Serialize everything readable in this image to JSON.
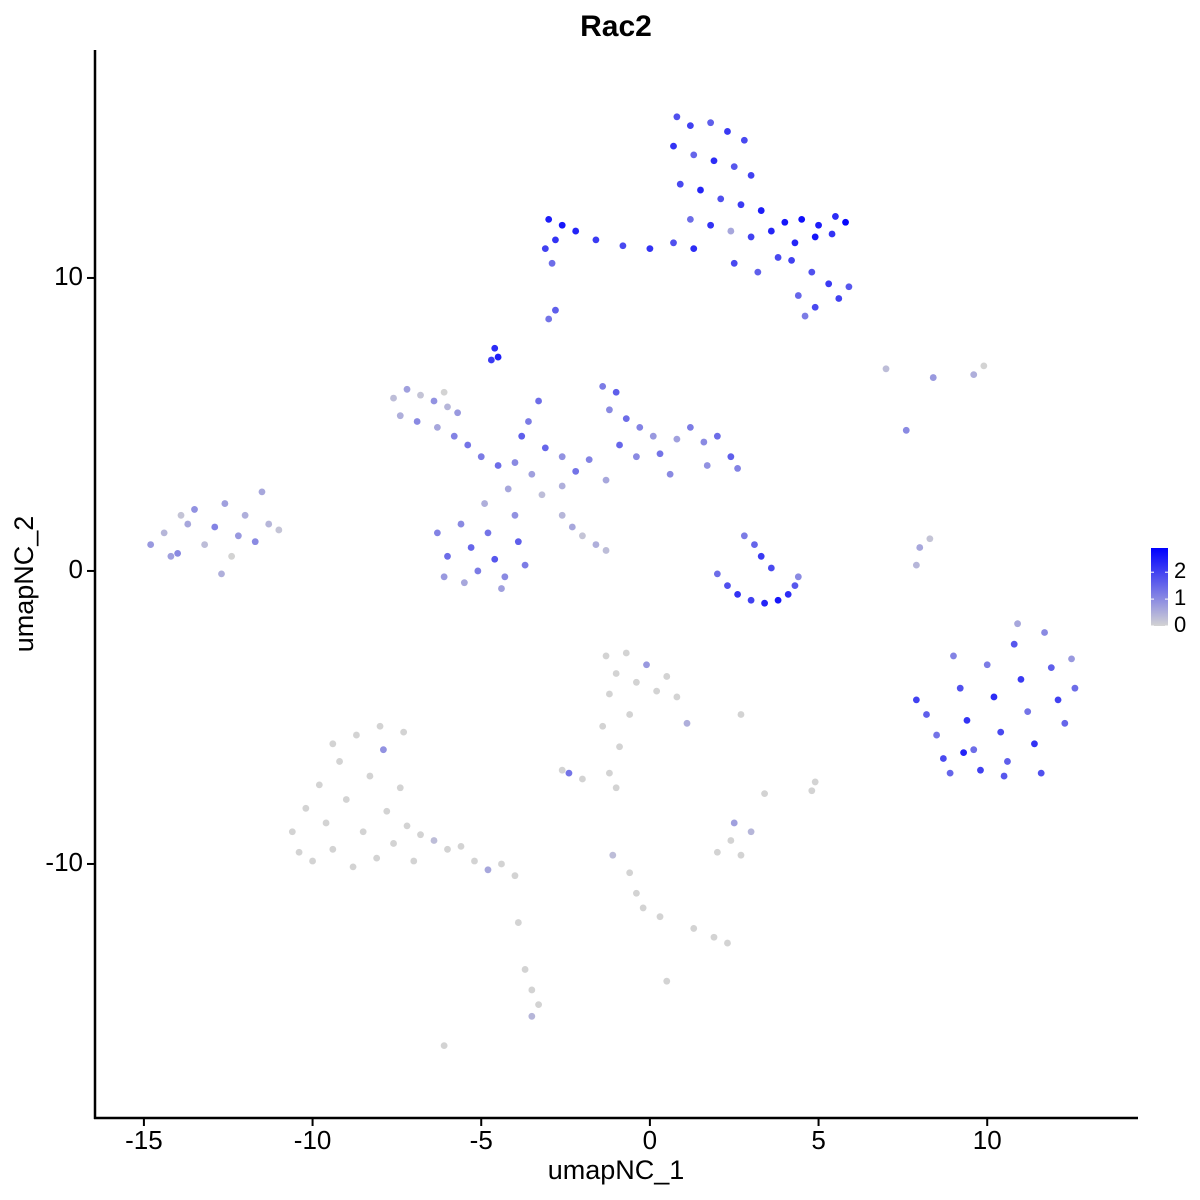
{
  "chart_data": {
    "type": "scatter",
    "title": "Rac2",
    "x_label": "umapNC_1",
    "y_label": "umapNC_2",
    "xlim": [
      -16.45,
      14.47
    ],
    "ylim": [
      -18.67,
      17.78
    ],
    "xticks": [
      -15,
      -10,
      -5,
      0,
      5,
      10
    ],
    "yticks": [
      -10,
      0,
      10
    ],
    "color_low": "#d3d3d3",
    "color_high": "#0000ff",
    "color_lim": [
      0,
      2.9
    ],
    "color_ticks": [
      0,
      1,
      2
    ],
    "points": [
      [
        0.8,
        15.5,
        1.8
      ],
      [
        1.2,
        15.2,
        2.0
      ],
      [
        1.8,
        15.3,
        1.6
      ],
      [
        2.3,
        15.0,
        2.1
      ],
      [
        2.8,
        14.7,
        1.9
      ],
      [
        0.7,
        14.5,
        2.2
      ],
      [
        1.3,
        14.2,
        1.5
      ],
      [
        1.9,
        14.0,
        2.3
      ],
      [
        2.5,
        13.8,
        1.7
      ],
      [
        3.0,
        13.5,
        2.0
      ],
      [
        0.9,
        13.2,
        1.9
      ],
      [
        1.5,
        13.0,
        2.4
      ],
      [
        2.1,
        12.7,
        1.8
      ],
      [
        2.7,
        12.5,
        2.1
      ],
      [
        3.3,
        12.3,
        2.5
      ],
      [
        1.2,
        12.0,
        1.4
      ],
      [
        1.8,
        11.8,
        2.2
      ],
      [
        2.4,
        11.6,
        0.6
      ],
      [
        3.0,
        11.4,
        2.0
      ],
      [
        3.6,
        11.6,
        2.4
      ],
      [
        4.0,
        11.9,
        2.6
      ],
      [
        4.5,
        12.0,
        2.7
      ],
      [
        5.0,
        11.8,
        2.5
      ],
      [
        5.5,
        12.1,
        2.3
      ],
      [
        5.8,
        11.9,
        2.8
      ],
      [
        4.3,
        11.2,
        2.4
      ],
      [
        4.9,
        11.4,
        2.6
      ],
      [
        5.4,
        11.5,
        2.2
      ],
      [
        4.2,
        10.6,
        2.0
      ],
      [
        4.8,
        10.2,
        1.8
      ],
      [
        5.3,
        9.8,
        2.1
      ],
      [
        5.9,
        9.7,
        1.7
      ],
      [
        4.4,
        9.4,
        1.5
      ],
      [
        4.9,
        9.0,
        1.9
      ],
      [
        4.6,
        8.7,
        1.2
      ],
      [
        5.6,
        9.3,
        2.0
      ],
      [
        3.2,
        10.2,
        1.6
      ],
      [
        2.5,
        10.5,
        1.9
      ],
      [
        -3.0,
        12.0,
        2.5
      ],
      [
        -2.6,
        11.8,
        2.6
      ],
      [
        -2.2,
        11.6,
        2.4
      ],
      [
        -2.8,
        11.3,
        2.2
      ],
      [
        -3.1,
        11.0,
        2.0
      ],
      [
        -1.6,
        11.3,
        2.1
      ],
      [
        -0.8,
        11.1,
        1.9
      ],
      [
        0.0,
        11.0,
        2.2
      ],
      [
        0.7,
        11.2,
        1.8
      ],
      [
        1.3,
        11.0,
        2.3
      ],
      [
        -3.0,
        8.6,
        1.3
      ],
      [
        -2.8,
        8.9,
        1.6
      ],
      [
        -2.9,
        10.5,
        1.4
      ],
      [
        3.8,
        10.7,
        1.9
      ],
      [
        -4.6,
        7.6,
        2.3
      ],
      [
        -4.5,
        7.3,
        2.5
      ],
      [
        -4.7,
        7.2,
        2.1
      ],
      [
        -7.6,
        5.9,
        0.3
      ],
      [
        -7.2,
        6.2,
        0.7
      ],
      [
        -6.8,
        6.0,
        0.2
      ],
      [
        -6.4,
        5.8,
        0.9
      ],
      [
        -6.0,
        5.6,
        0.4
      ],
      [
        -7.4,
        5.3,
        0.5
      ],
      [
        -6.9,
        5.1,
        1.0
      ],
      [
        -6.3,
        4.9,
        0.6
      ],
      [
        -5.8,
        4.6,
        1.1
      ],
      [
        -5.4,
        4.3,
        1.3
      ],
      [
        -6.1,
        6.1,
        0.0
      ],
      [
        -5.7,
        5.4,
        0.8
      ],
      [
        -5.0,
        3.9,
        1.2
      ],
      [
        -4.5,
        3.6,
        1.4
      ],
      [
        -4.0,
        3.7,
        1.0
      ],
      [
        -3.5,
        3.3,
        0.7
      ],
      [
        -3.1,
        4.2,
        1.5
      ],
      [
        -2.6,
        3.9,
        0.9
      ],
      [
        -2.2,
        3.4,
        1.3
      ],
      [
        -1.8,
        3.8,
        1.1
      ],
      [
        -3.8,
        4.6,
        1.6
      ],
      [
        -3.3,
        5.8,
        1.4
      ],
      [
        -3.6,
        5.1,
        1.2
      ],
      [
        -4.2,
        2.8,
        0.6
      ],
      [
        -3.2,
        2.6,
        0.3
      ],
      [
        -2.6,
        2.9,
        0.5
      ],
      [
        -1.4,
        6.3,
        1.2
      ],
      [
        -1.0,
        6.1,
        1.6
      ],
      [
        -1.2,
        5.5,
        1.0
      ],
      [
        -0.7,
        5.2,
        1.4
      ],
      [
        -0.3,
        4.9,
        1.1
      ],
      [
        0.1,
        4.6,
        0.8
      ],
      [
        -0.9,
        4.3,
        1.5
      ],
      [
        -0.4,
        3.9,
        1.0
      ],
      [
        0.3,
        4.0,
        1.3
      ],
      [
        0.8,
        4.5,
        0.7
      ],
      [
        1.2,
        4.9,
        1.2
      ],
      [
        1.6,
        4.4,
        1.0
      ],
      [
        2.0,
        4.6,
        1.4
      ],
      [
        2.4,
        3.9,
        1.6
      ],
      [
        2.6,
        3.5,
        1.1
      ],
      [
        1.7,
        3.6,
        0.9
      ],
      [
        -1.3,
        3.1,
        0.6
      ],
      [
        0.6,
        3.3,
        1.0
      ],
      [
        -6.3,
        1.3,
        1.1
      ],
      [
        -6.0,
        0.5,
        1.4
      ],
      [
        -6.1,
        -0.2,
        0.8
      ],
      [
        -5.6,
        1.6,
        1.0
      ],
      [
        -5.3,
        0.8,
        1.5
      ],
      [
        -5.1,
        0.0,
        1.2
      ],
      [
        -5.5,
        -0.4,
        0.6
      ],
      [
        -4.8,
        1.3,
        1.3
      ],
      [
        -4.6,
        0.4,
        1.7
      ],
      [
        -4.3,
        -0.2,
        1.0
      ],
      [
        -4.0,
        1.9,
        0.9
      ],
      [
        -3.9,
        1.0,
        1.6
      ],
      [
        -3.7,
        0.2,
        1.2
      ],
      [
        -4.4,
        -0.6,
        0.7
      ],
      [
        -4.9,
        2.3,
        0.5
      ],
      [
        -2.6,
        1.9,
        0.4
      ],
      [
        -2.3,
        1.5,
        0.6
      ],
      [
        -2.0,
        1.2,
        0.2
      ],
      [
        -1.6,
        0.9,
        0.5
      ],
      [
        -1.3,
        0.7,
        0.3
      ],
      [
        -14.8,
        0.9,
        0.8
      ],
      [
        -14.4,
        1.3,
        0.4
      ],
      [
        -14.0,
        0.6,
        1.0
      ],
      [
        -13.7,
        1.6,
        0.6
      ],
      [
        -13.5,
        2.1,
        0.9
      ],
      [
        -13.2,
        0.9,
        0.3
      ],
      [
        -12.9,
        1.5,
        1.1
      ],
      [
        -12.6,
        2.3,
        0.7
      ],
      [
        -12.4,
        0.5,
        0.0
      ],
      [
        -12.2,
        1.2,
        0.8
      ],
      [
        -12.0,
        1.9,
        0.5
      ],
      [
        -11.7,
        1.0,
        1.0
      ],
      [
        -11.5,
        2.7,
        0.6
      ],
      [
        -11.3,
        1.6,
        0.4
      ],
      [
        -11.0,
        1.4,
        0.2
      ],
      [
        -12.7,
        -0.1,
        0.5
      ],
      [
        -13.9,
        1.9,
        0.2
      ],
      [
        -14.2,
        0.5,
        0.7
      ],
      [
        2.0,
        -0.1,
        1.4
      ],
      [
        2.3,
        -0.5,
        1.8
      ],
      [
        2.6,
        -0.8,
        2.2
      ],
      [
        3.0,
        -1.0,
        2.0
      ],
      [
        3.4,
        -1.1,
        2.4
      ],
      [
        3.8,
        -1.0,
        2.6
      ],
      [
        4.1,
        -0.8,
        2.3
      ],
      [
        4.3,
        -0.5,
        1.7
      ],
      [
        3.1,
        0.9,
        1.5
      ],
      [
        3.3,
        0.5,
        2.1
      ],
      [
        2.8,
        1.2,
        1.2
      ],
      [
        3.6,
        0.1,
        1.9
      ],
      [
        4.4,
        -0.2,
        1.0
      ],
      [
        7.9,
        -4.4,
        2.0
      ],
      [
        8.2,
        -4.9,
        1.6
      ],
      [
        8.5,
        -5.6,
        1.3
      ],
      [
        8.7,
        -6.4,
        1.9
      ],
      [
        8.9,
        -6.9,
        1.5
      ],
      [
        9.2,
        -4.0,
        1.8
      ],
      [
        9.4,
        -5.1,
        2.2
      ],
      [
        9.6,
        -6.1,
        1.4
      ],
      [
        9.8,
        -6.8,
        2.0
      ],
      [
        10.0,
        -3.2,
        1.2
      ],
      [
        10.2,
        -4.3,
        2.3
      ],
      [
        10.4,
        -5.5,
        1.9
      ],
      [
        10.6,
        -6.5,
        1.6
      ],
      [
        10.8,
        -2.5,
        1.7
      ],
      [
        11.0,
        -3.7,
        2.1
      ],
      [
        11.2,
        -4.8,
        1.3
      ],
      [
        11.4,
        -5.9,
        2.2
      ],
      [
        11.6,
        -6.9,
        1.8
      ],
      [
        11.7,
        -2.1,
        1.0
      ],
      [
        11.9,
        -3.3,
        1.6
      ],
      [
        12.1,
        -4.4,
        2.0
      ],
      [
        12.3,
        -5.2,
        1.5
      ],
      [
        12.5,
        -3.0,
        0.8
      ],
      [
        12.6,
        -4.0,
        1.4
      ],
      [
        10.9,
        -1.8,
        0.6
      ],
      [
        9.0,
        -2.9,
        1.1
      ],
      [
        9.3,
        -6.2,
        2.4
      ],
      [
        10.5,
        -7.0,
        1.7
      ],
      [
        7.0,
        6.9,
        0.3
      ],
      [
        8.4,
        6.6,
        0.8
      ],
      [
        9.6,
        6.7,
        0.5
      ],
      [
        9.9,
        7.0,
        0.0
      ],
      [
        7.6,
        4.8,
        1.0
      ],
      [
        8.0,
        0.8,
        0.6
      ],
      [
        7.9,
        0.2,
        0.4
      ],
      [
        8.3,
        1.1,
        0.2
      ],
      [
        -10.6,
        -8.9,
        0
      ],
      [
        -10.4,
        -9.6,
        0
      ],
      [
        -10.2,
        -8.1,
        0
      ],
      [
        -10.0,
        -9.9,
        0
      ],
      [
        -9.8,
        -7.3,
        0
      ],
      [
        -9.6,
        -8.6,
        0
      ],
      [
        -9.4,
        -9.5,
        0
      ],
      [
        -9.2,
        -6.5,
        0
      ],
      [
        -9.0,
        -7.8,
        0
      ],
      [
        -8.8,
        -10.1,
        0
      ],
      [
        -8.7,
        -5.6,
        0
      ],
      [
        -8.5,
        -8.9,
        0
      ],
      [
        -8.3,
        -7.0,
        0
      ],
      [
        -8.1,
        -9.8,
        0
      ],
      [
        -7.9,
        -6.1,
        0.9
      ],
      [
        -7.8,
        -8.2,
        0
      ],
      [
        -7.6,
        -9.3,
        0
      ],
      [
        -7.4,
        -7.4,
        0
      ],
      [
        -7.3,
        -5.5,
        0
      ],
      [
        -7.2,
        -8.7,
        0
      ],
      [
        -8.0,
        -5.3,
        0
      ],
      [
        -9.4,
        -5.9,
        0
      ],
      [
        -7.0,
        -9.9,
        0
      ],
      [
        -6.8,
        -9.0,
        0
      ],
      [
        -6.4,
        -9.2,
        0.3
      ],
      [
        -6.0,
        -9.5,
        0
      ],
      [
        -5.6,
        -9.4,
        0
      ],
      [
        -5.2,
        -9.9,
        0
      ],
      [
        -4.8,
        -10.2,
        0.6
      ],
      [
        -4.4,
        -10.0,
        0
      ],
      [
        -4.0,
        -10.4,
        0
      ],
      [
        -1.3,
        -2.9,
        0
      ],
      [
        -1.0,
        -3.5,
        0
      ],
      [
        -0.7,
        -2.8,
        0
      ],
      [
        -0.4,
        -3.8,
        0
      ],
      [
        -0.1,
        -3.2,
        0.8
      ],
      [
        0.2,
        -4.1,
        0
      ],
      [
        0.5,
        -3.6,
        0
      ],
      [
        0.8,
        -4.3,
        0
      ],
      [
        1.1,
        -5.2,
        0.5
      ],
      [
        -1.2,
        -4.2,
        0
      ],
      [
        -0.6,
        -4.9,
        0
      ],
      [
        -1.4,
        -5.3,
        0
      ],
      [
        -0.9,
        -6.0,
        0
      ],
      [
        -2.6,
        -6.8,
        0
      ],
      [
        -2.4,
        -6.9,
        1.3
      ],
      [
        -2.0,
        -7.1,
        0
      ],
      [
        -1.2,
        -6.9,
        0
      ],
      [
        -1.0,
        -7.4,
        0
      ],
      [
        2.0,
        -9.6,
        0
      ],
      [
        2.4,
        -9.2,
        0
      ],
      [
        2.7,
        -9.7,
        0
      ],
      [
        3.0,
        -8.9,
        0.4
      ],
      [
        2.5,
        -8.6,
        0.7
      ],
      [
        3.4,
        -7.6,
        0
      ],
      [
        4.9,
        -7.2,
        0
      ],
      [
        4.8,
        -7.5,
        0
      ],
      [
        2.7,
        -4.9,
        0
      ],
      [
        -0.6,
        -10.3,
        0
      ],
      [
        -0.4,
        -11.0,
        0
      ],
      [
        -0.2,
        -11.5,
        0
      ],
      [
        0.3,
        -11.8,
        0
      ],
      [
        1.3,
        -12.2,
        0
      ],
      [
        1.9,
        -12.5,
        0
      ],
      [
        2.3,
        -12.7,
        0
      ],
      [
        -3.7,
        -13.6,
        0
      ],
      [
        -3.5,
        -14.3,
        0
      ],
      [
        -3.3,
        -14.8,
        0
      ],
      [
        -3.5,
        -15.2,
        0.4
      ],
      [
        -6.1,
        -16.2,
        0
      ],
      [
        -3.9,
        -12.0,
        0
      ],
      [
        0.5,
        -14.0,
        0
      ],
      [
        -1.1,
        -9.7,
        0.3
      ]
    ]
  }
}
